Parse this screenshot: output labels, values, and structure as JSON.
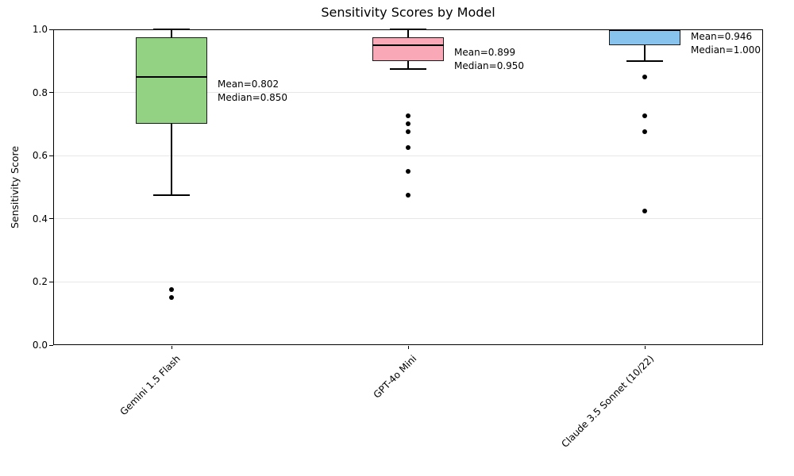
{
  "chart_data": {
    "type": "boxplot",
    "title": "Sensitivity Scores by Model",
    "xlabel": "",
    "ylabel": "Sensitivity Score",
    "ylim": [
      0.0,
      1.0
    ],
    "yticks": [
      0.0,
      0.2,
      0.4,
      0.6,
      0.8,
      1.0
    ],
    "grid": "horizontal light-gray lines at y ticks",
    "legend": "none",
    "categories": [
      "Gemini 1.5 Flash",
      "GPT-4o Mini",
      "Claude 3.5 Sonnet (10/22)"
    ],
    "series": [
      {
        "name": "Gemini 1.5 Flash",
        "color": "#92d282",
        "whisker_low": 0.475,
        "q1": 0.7,
        "median": 0.85,
        "q3": 0.975,
        "whisker_high": 1.0,
        "outliers": [
          0.175,
          0.15
        ],
        "mean": 0.802,
        "annotation": [
          "Mean=0.802",
          "Median=0.850"
        ]
      },
      {
        "name": "GPT-4o Mini",
        "color": "#f9a8b8",
        "whisker_low": 0.875,
        "q1": 0.9,
        "median": 0.95,
        "q3": 0.975,
        "whisker_high": 1.0,
        "outliers": [
          0.725,
          0.7,
          0.675,
          0.625,
          0.55,
          0.475
        ],
        "mean": 0.899,
        "annotation": [
          "Mean=0.899",
          "Median=0.950"
        ]
      },
      {
        "name": "Claude 3.5 Sonnet (10/22)",
        "color": "#87c3ed",
        "whisker_low": 0.9,
        "q1": 0.95,
        "median": 1.0,
        "q3": 1.0,
        "whisker_high": 1.0,
        "outliers": [
          0.85,
          0.725,
          0.675,
          0.425
        ],
        "mean": 0.946,
        "annotation": [
          "Mean=0.946",
          "Median=1.000"
        ]
      }
    ],
    "colors": {
      "box_edge": "#1a1a1a",
      "median_line": "#000000",
      "grid_line": "#e7e7e7",
      "outlier_dot": "#000000",
      "text": "#000000",
      "background": "#ffffff"
    }
  }
}
